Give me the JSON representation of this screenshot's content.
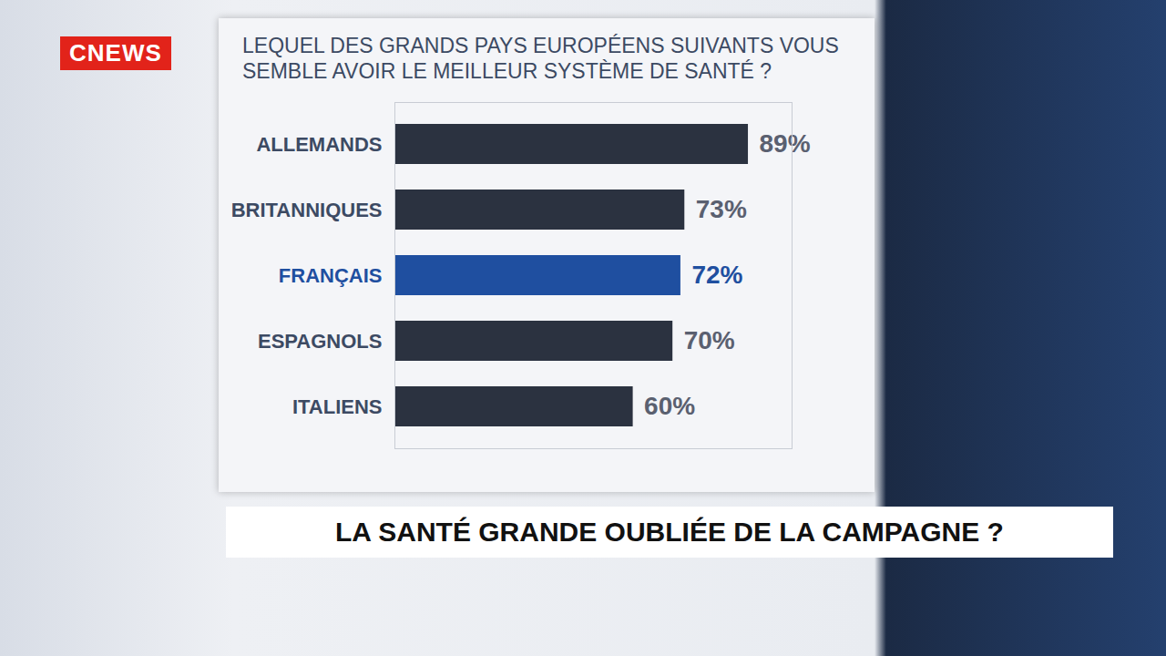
{
  "chart_data": {
    "type": "bar",
    "title": "LEQUEL DES GRANDS PAYS EUROPÉENS SUIVANTS VOUS SEMBLE AVOIR LE MEILLEUR SYSTÈME DE SANTÉ ?",
    "orientation": "horizontal",
    "categories": [
      "ALLEMANDS",
      "BRITANNIQUES",
      "FRANÇAIS",
      "ESPAGNOLS",
      "ITALIENS"
    ],
    "values": [
      89,
      73,
      72,
      70,
      60
    ],
    "value_labels": [
      "89%",
      "73%",
      "72%",
      "70%",
      "60%"
    ],
    "colors": [
      "#2b3240",
      "#2b3240",
      "#1f4fa0",
      "#2b3240",
      "#2b3240"
    ],
    "xlim": [
      0,
      100
    ],
    "xticks": [],
    "grid": false,
    "data_labels": true,
    "tick_labels": "y"
  },
  "channel": "CNEWS",
  "banner": "LA SANTÉ GRANDE OUBLIÉE DE LA CAMPAGNE ?"
}
